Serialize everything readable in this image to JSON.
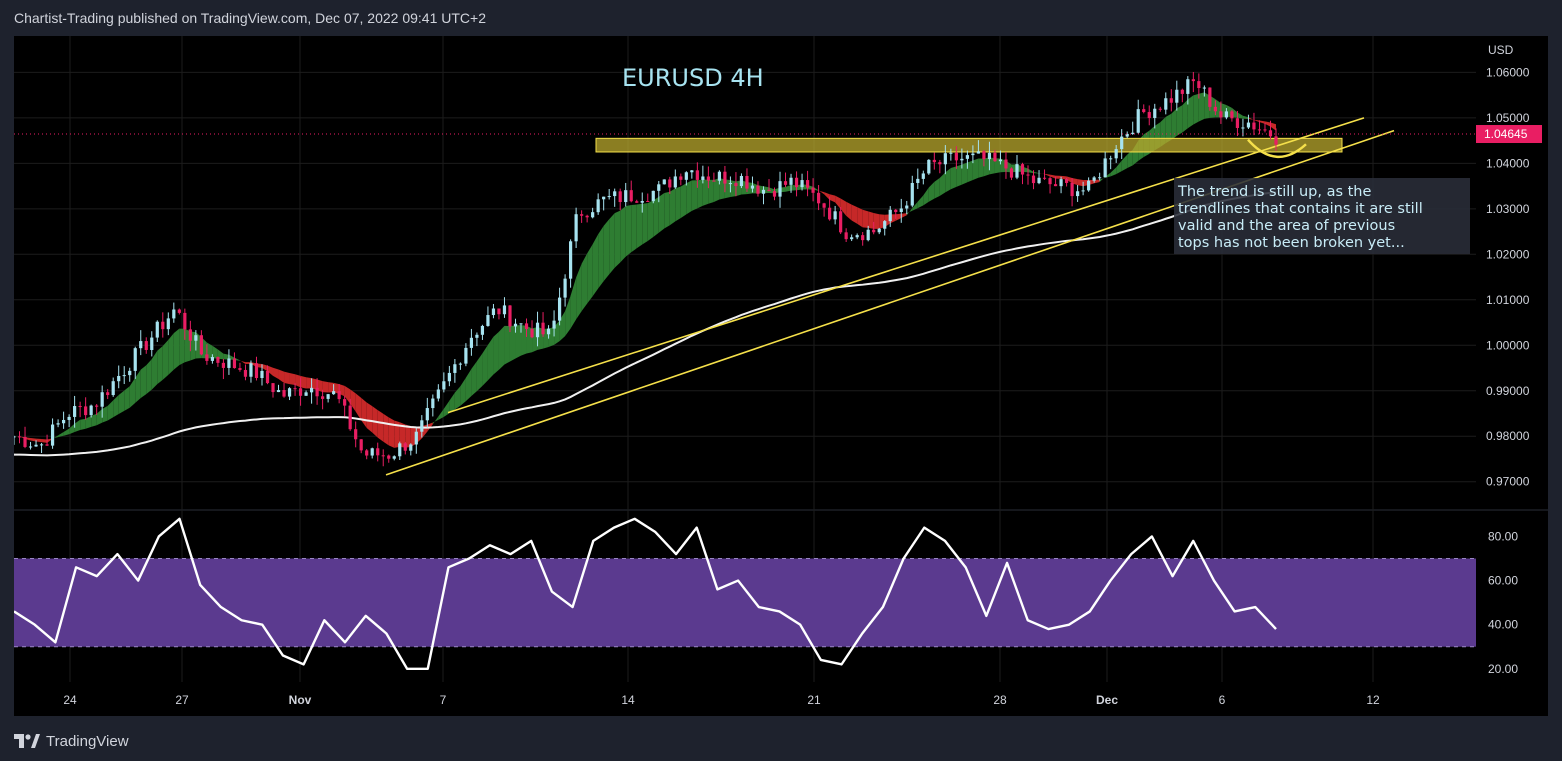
{
  "header": {
    "published_line": "Chartist-Trading published on TradingView.com, Dec 07, 2022 09:41 UTC+2"
  },
  "footer": {
    "logo_text": "TradingView"
  },
  "colors": {
    "background": "#000000",
    "frame": "#1e222d",
    "grid": "#1c1c1c",
    "candle_up": "#a7e3f0",
    "candle_down": "#e91e63",
    "cloud_bull": "#2e7d32",
    "cloud_bear": "#c62828",
    "ma_line": "#f0f0f0",
    "trendline": "#f5e04a",
    "resistance_zone": "#b9a82e",
    "rsi_band": "#5b3a8f",
    "rsi_line": "#ffffff",
    "price_tag": "#e91e63"
  },
  "annotations": {
    "chart_title": "EURUSD 4H",
    "note_lines": [
      "The trend is still up, as the",
      "trendlines that contains it are still",
      "valid and the area of previous",
      "tops has not been broken yet..."
    ]
  },
  "chart_data": [
    {
      "type": "candlestick",
      "title": "EURUSD 4H",
      "y_unit": "USD",
      "ylim": [
        0.964,
        1.068
      ],
      "y_ticks": [
        "1.06000",
        "1.05000",
        "1.04000",
        "1.03000",
        "1.02000",
        "1.01000",
        "1.00000",
        "0.99000",
        "0.98000",
        "0.97000"
      ],
      "x_ticks": [
        "24",
        "27",
        "Nov",
        "7",
        "14",
        "21",
        "28",
        "Dec",
        "6",
        "12"
      ],
      "last_price": "1.04645",
      "close_path": [
        [
          "Oct 21",
          0.98
        ],
        [
          "Oct 22",
          0.978
        ],
        [
          "Oct 23",
          0.985
        ],
        [
          "Oct 24",
          0.987
        ],
        [
          "Oct 25",
          0.994
        ],
        [
          "Oct 26",
          1.001
        ],
        [
          "Oct 27",
          1.008
        ],
        [
          "Oct 28",
          0.998
        ],
        [
          "Oct 29",
          0.996
        ],
        [
          "Oct 30",
          0.994
        ],
        [
          "Oct 31",
          0.989
        ],
        [
          "Nov 1",
          0.991
        ],
        [
          "Nov 2",
          0.989
        ],
        [
          "Nov 3",
          0.976
        ],
        [
          "Nov 4",
          0.976
        ],
        [
          "Nov 5",
          0.98
        ],
        [
          "Nov 6",
          0.991
        ],
        [
          "Nov 7",
          1.002
        ],
        [
          "Nov 8",
          1.008
        ],
        [
          "Nov 9",
          1.004
        ],
        [
          "Nov 10",
          1.002
        ],
        [
          "Nov 11",
          1.029
        ],
        [
          "Nov 12",
          1.032
        ],
        [
          "Nov 13",
          1.033
        ],
        [
          "Nov 14",
          1.034
        ],
        [
          "Nov 15",
          1.039
        ],
        [
          "Nov 16",
          1.037
        ],
        [
          "Nov 17",
          1.037
        ],
        [
          "Nov 18",
          1.034
        ],
        [
          "Nov 19",
          1.036
        ],
        [
          "Nov 20",
          1.032
        ],
        [
          "Nov 21",
          1.025
        ],
        [
          "Nov 22",
          1.025
        ],
        [
          "Nov 23",
          1.03
        ],
        [
          "Nov 24",
          1.039
        ],
        [
          "Nov 25",
          1.041
        ],
        [
          "Nov 26",
          1.041
        ],
        [
          "Nov 27",
          1.039
        ],
        [
          "Nov 28",
          1.036
        ],
        [
          "Nov 29",
          1.035
        ],
        [
          "Nov 30",
          1.034
        ],
        [
          "Dec 1",
          1.044
        ],
        [
          "Dec 2",
          1.051
        ],
        [
          "Dec 3",
          1.054
        ],
        [
          "Dec 4",
          1.058
        ],
        [
          "Dec 5",
          1.05
        ],
        [
          "Dec 6",
          1.049
        ],
        [
          "Dec 7",
          1.046
        ]
      ],
      "resistance_zone": [
        1.0425,
        1.0455
      ]
    },
    {
      "type": "line",
      "title": "",
      "ylim": [
        14,
        92
      ],
      "y_ticks": [
        "80.00",
        "60.00",
        "40.00",
        "20.00"
      ],
      "band": [
        30,
        70
      ],
      "series": [
        {
          "values": [
            46,
            40,
            32,
            66,
            62,
            72,
            60,
            80,
            88,
            58,
            48,
            42,
            40,
            26,
            22,
            42,
            32,
            44,
            36,
            20,
            20,
            66,
            70,
            76,
            72,
            78,
            55,
            48,
            78,
            84,
            88,
            82,
            72,
            84,
            56,
            60,
            48,
            46,
            40,
            24,
            22,
            36,
            48,
            70,
            84,
            78,
            66,
            44,
            68,
            42,
            38,
            40,
            46,
            60,
            72,
            80,
            62,
            78,
            60,
            46,
            48,
            38
          ]
        }
      ]
    }
  ]
}
